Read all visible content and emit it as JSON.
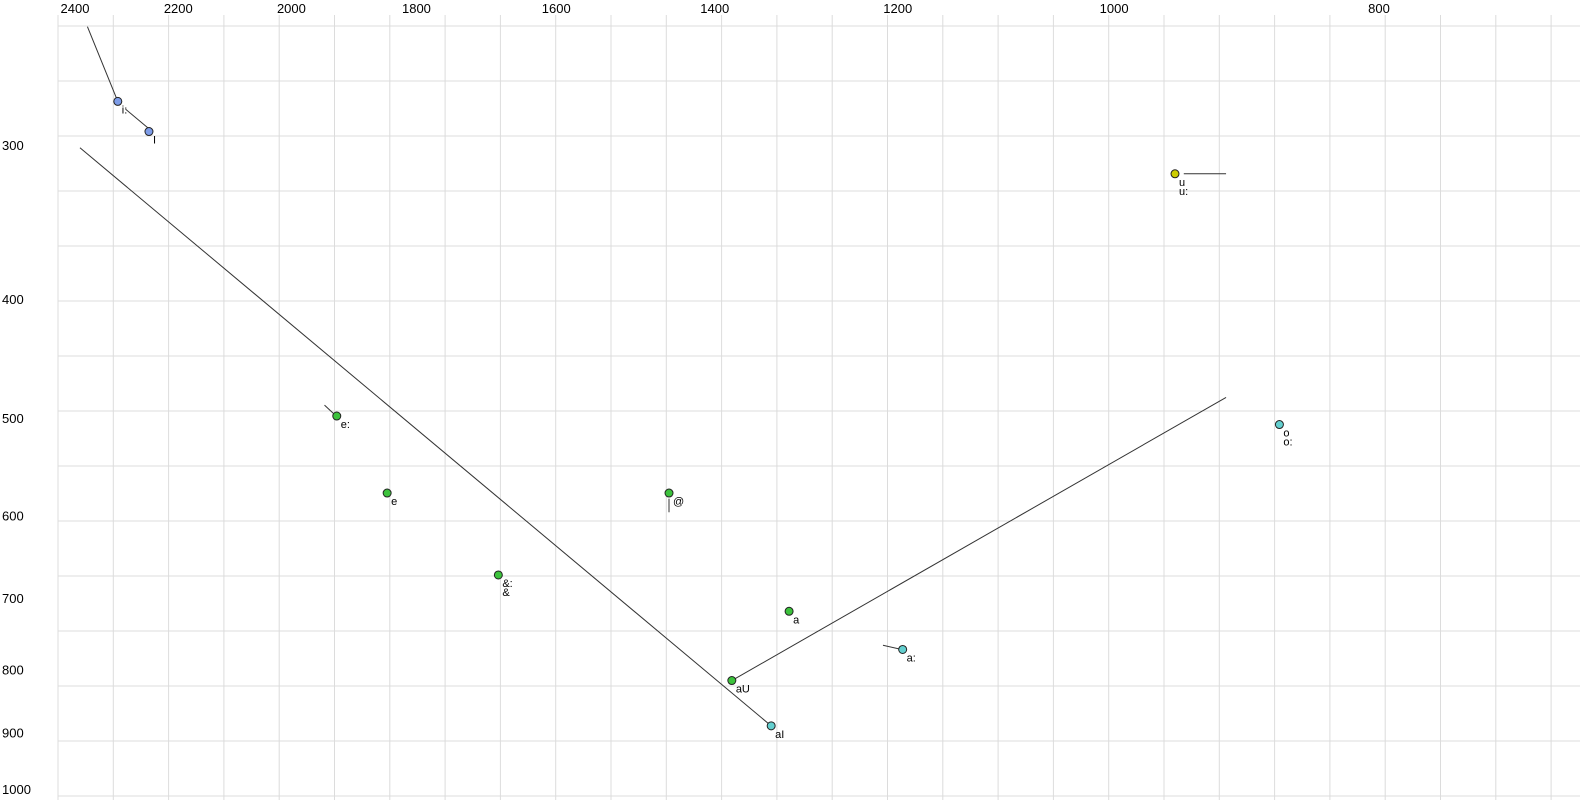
{
  "palette": {
    "blue": "#7d9ce8",
    "yellow": "#cccc00",
    "green": "#3cc23c",
    "cyan": "#63cfcf",
    "grid": "#dcdcdc",
    "line": "#333333",
    "point_outline": "#222222",
    "text": "#000000"
  },
  "chart_data": {
    "type": "scatter",
    "title": "",
    "description": "Vowel formant plot (F2 horizontal reversed log scale, F1 vertical reversed log scale), SAMPA vowel labels",
    "x_axis": {
      "scale": "log",
      "direction": "reversed",
      "ticks": [
        2400,
        2200,
        2000,
        1800,
        1600,
        1400,
        1200,
        1000,
        800
      ],
      "tick_position": "top",
      "range": [
        2556,
        675
      ]
    },
    "y_axis": {
      "scale": "log",
      "direction": "reversed",
      "ticks": [
        300,
        400,
        500,
        600,
        700,
        800,
        900,
        1000
      ],
      "tick_position": "left",
      "range": [
        228,
        1020
      ]
    },
    "grid": "uniform-decorative",
    "points": [
      {
        "id": "i-long",
        "label": "i:",
        "f2": 2315,
        "f1": 276,
        "color": "blue"
      },
      {
        "id": "i-short",
        "label": "I",
        "f2": 2255,
        "f1": 292,
        "color": "blue"
      },
      {
        "id": "u",
        "label": "u",
        "label2": "u:",
        "f2": 950,
        "f1": 316,
        "color": "yellow"
      },
      {
        "id": "e-long",
        "label": "e:",
        "f2": 1925,
        "f1": 497,
        "color": "green"
      },
      {
        "id": "o",
        "label": "o",
        "label2": "o:",
        "f2": 870,
        "f1": 505,
        "color": "cyan"
      },
      {
        "id": "e",
        "label": "e",
        "f2": 1845,
        "f1": 574,
        "color": "green"
      },
      {
        "id": "schwa",
        "label": "@",
        "f2": 1455,
        "f1": 574,
        "color": "green"
      },
      {
        "id": "ae",
        "label": "&:",
        "label2": "&",
        "f2": 1680,
        "f1": 669,
        "color": "green"
      },
      {
        "id": "a",
        "label": "a",
        "f2": 1315,
        "f1": 716,
        "color": "green"
      },
      {
        "id": "a-long",
        "label": "a:",
        "f2": 1195,
        "f1": 769,
        "color": "cyan"
      },
      {
        "id": "au",
        "label": "aU",
        "f2": 1380,
        "f1": 815,
        "color": "green"
      },
      {
        "id": "ai",
        "label": "aI",
        "f2": 1335,
        "f1": 887,
        "color": "cyan"
      }
    ],
    "lines": [
      {
        "name": "top-left-segment",
        "f2a": 2375,
        "f1a": 240,
        "f2b": 2315,
        "f1b": 276
      },
      {
        "name": "i-to-I-segment",
        "f2a": 2300,
        "f1a": 280,
        "f2b": 2257,
        "f1b": 290
      },
      {
        "name": "front-diagonal",
        "f2a": 2390,
        "f1a": 301,
        "f2b": 1335,
        "f1b": 887
      },
      {
        "name": "back-diagonal",
        "f2a": 1380,
        "f1a": 815,
        "f2b": 910,
        "f1b": 480
      },
      {
        "name": "top-right-segment",
        "f2a": 943,
        "f1a": 316,
        "f2b": 910,
        "f1b": 316
      },
      {
        "name": "e-long-leader",
        "f2a": 1945,
        "f1a": 487,
        "f2b": 1926,
        "f1b": 497
      },
      {
        "name": "schwa-leader",
        "f2a": 1455,
        "f1a": 580,
        "f2b": 1455,
        "f1b": 595
      },
      {
        "name": "a-long-leader",
        "f2a": 1215,
        "f1a": 763,
        "f2b": 1196,
        "f1b": 769
      }
    ]
  }
}
